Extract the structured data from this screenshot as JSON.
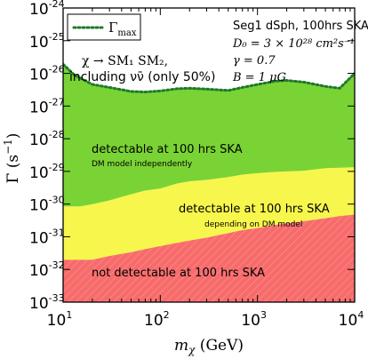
{
  "chart_data": {
    "type": "area",
    "x_scale": "log",
    "y_scale": "log",
    "xlim": [
      10,
      10000
    ],
    "ylim": [
      1e-33,
      1e-24
    ],
    "xlabel": "m_χ (GeV)",
    "ylabel": "Γ (s⁻¹)",
    "x_ticks": [
      {
        "value": 10,
        "base": "10",
        "exp": "1"
      },
      {
        "value": 100,
        "base": "10",
        "exp": "2"
      },
      {
        "value": 1000,
        "base": "10",
        "exp": "3"
      },
      {
        "value": 10000,
        "base": "10",
        "exp": "4"
      }
    ],
    "y_ticks": [
      {
        "value": 1e-33,
        "base": "10",
        "exp": "-33"
      },
      {
        "value": 1e-32,
        "base": "10",
        "exp": "-32"
      },
      {
        "value": 1e-31,
        "base": "10",
        "exp": "-31"
      },
      {
        "value": 1e-30,
        "base": "10",
        "exp": "-30"
      },
      {
        "value": 1e-29,
        "base": "10",
        "exp": "-29"
      },
      {
        "value": 1e-28,
        "base": "10",
        "exp": "-28"
      },
      {
        "value": 1e-27,
        "base": "10",
        "exp": "-27"
      },
      {
        "value": 1e-26,
        "base": "10",
        "exp": "-26"
      },
      {
        "value": 1e-25,
        "base": "10",
        "exp": "-25"
      },
      {
        "value": 1e-24,
        "base": "10",
        "exp": "-24"
      }
    ],
    "series": [
      {
        "name": "Γ_max",
        "x": [
          10,
          13,
          20,
          30,
          50,
          70,
          100,
          150,
          200,
          300,
          500,
          700,
          1000,
          1500,
          2000,
          3000,
          5000,
          7000,
          10000
        ],
        "y": [
          1.9e-26,
          9e-27,
          4.6e-27,
          3.7e-27,
          2.8e-27,
          2.7e-27,
          2.9e-27,
          3.4e-27,
          3.5e-27,
          3.3e-27,
          3e-27,
          3.7e-27,
          4.6e-27,
          5.7e-27,
          6.1e-27,
          5.4e-27,
          4e-27,
          3.5e-27,
          1e-26
        ]
      },
      {
        "name": "DM model independent boundary",
        "x": [
          10,
          15,
          20,
          30,
          50,
          70,
          100,
          150,
          200,
          300,
          500,
          700,
          1000,
          1500,
          2000,
          3000,
          5000,
          7000,
          10000
        ],
        "y": [
          8.5e-31,
          8.5e-31,
          1e-30,
          1.3e-30,
          2e-30,
          2.6e-30,
          3e-30,
          4.3e-30,
          5e-30,
          5.5e-30,
          6.7e-30,
          8e-30,
          8.8e-30,
          9.6e-30,
          1e-29,
          1.05e-29,
          1.25e-29,
          1.3e-29,
          1.35e-29
        ]
      },
      {
        "name": "DM model dependent boundary",
        "x": [
          10,
          20,
          30,
          50,
          70,
          100,
          150,
          200,
          300,
          500,
          700,
          1000,
          1500,
          2000,
          3000,
          5000,
          7000,
          10000
        ],
        "y": [
          2e-32,
          2e-32,
          2.6e-32,
          3.4e-32,
          4.2e-32,
          5.2e-32,
          6.6e-32,
          7.7e-32,
          9.4e-32,
          1.3e-31,
          1.6e-31,
          1.85e-31,
          2.3e-31,
          2.6e-31,
          3e-31,
          3.7e-31,
          4.3e-31,
          4.8e-31
        ]
      }
    ],
    "regions": [
      {
        "label": "detectable at 100 hrs SKA",
        "sublabel": "DM model independently",
        "color": "#7ad334"
      },
      {
        "label": "detectable at 100 hrs SKA",
        "sublabel": "depending on DM model",
        "color": "#f7f64d"
      },
      {
        "label": "not detectable at 100 hrs SKA",
        "sublabel": "",
        "color": "#f86b6b"
      }
    ],
    "legend": {
      "position": "top-left",
      "label_base": "Γ",
      "label_sub": "max",
      "line_color": "#1f7a2a"
    },
    "annotations": {
      "process_line1": "χ → SM₁ SM₂,",
      "process_line2": "including νν̄ (only 50%)",
      "params": [
        "Seg1 dSph, 100hrs SKA",
        "D₀ = 3 × 10²⁸ cm²s⁻¹",
        "γ = 0.7",
        "B = 1 μG"
      ]
    }
  }
}
